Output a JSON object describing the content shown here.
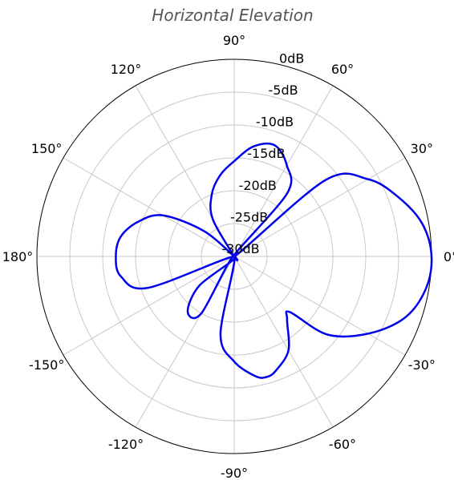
{
  "chart_data": {
    "type": "polar-line",
    "title": "Horizontal Elevation",
    "theta_ticks": [
      {
        "deg": 0,
        "label": "0°"
      },
      {
        "deg": 30,
        "label": "30°"
      },
      {
        "deg": 60,
        "label": "60°"
      },
      {
        "deg": 90,
        "label": "90°"
      },
      {
        "deg": 120,
        "label": "120°"
      },
      {
        "deg": 150,
        "label": "150°"
      },
      {
        "deg": 180,
        "label": "180°"
      },
      {
        "deg": -150,
        "label": "-150°"
      },
      {
        "deg": -120,
        "label": "-120°"
      },
      {
        "deg": -90,
        "label": "-90°"
      },
      {
        "deg": -60,
        "label": "-60°"
      },
      {
        "deg": -30,
        "label": "-30°"
      }
    ],
    "r_ticks": [
      {
        "value": 0,
        "label": "0dB"
      },
      {
        "value": -5,
        "label": "-5dB"
      },
      {
        "value": -10,
        "label": "-10dB"
      },
      {
        "value": -15,
        "label": "-15dB"
      },
      {
        "value": -20,
        "label": "-20dB"
      },
      {
        "value": -25,
        "label": "-25dB"
      },
      {
        "value": -30,
        "label": "-30dB"
      }
    ],
    "r_range": [
      -30,
      0
    ],
    "r_label_angle_deg": 75,
    "grid": true,
    "series": [
      {
        "color": "#0000ee",
        "angles_deg": [
          0,
          10,
          20,
          30,
          40,
          45,
          50,
          60,
          70,
          80,
          90,
          100,
          110,
          120,
          130,
          135,
          140,
          150,
          160,
          170,
          180,
          190,
          200,
          210,
          220,
          230,
          240,
          250,
          260,
          270,
          280,
          285,
          290,
          300,
          310,
          315,
          320,
          330,
          340,
          350,
          360
        ],
        "gain_db": [
          0,
          -1,
          -3.5,
          -6.5,
          -12,
          -30,
          -17.5,
          -14,
          -12,
          -13,
          -15.5,
          -17.5,
          -20,
          -23.5,
          -30,
          -30,
          -24,
          -17.5,
          -14.5,
          -12.5,
          -12,
          -12.5,
          -16,
          -30,
          -23,
          -19,
          -20,
          -30,
          -18,
          -14,
          -11.5,
          -11,
          -11.5,
          -13.5,
          -17.5,
          -18,
          -11.5,
          -6.5,
          -2.5,
          -0.5,
          0
        ]
      }
    ]
  }
}
